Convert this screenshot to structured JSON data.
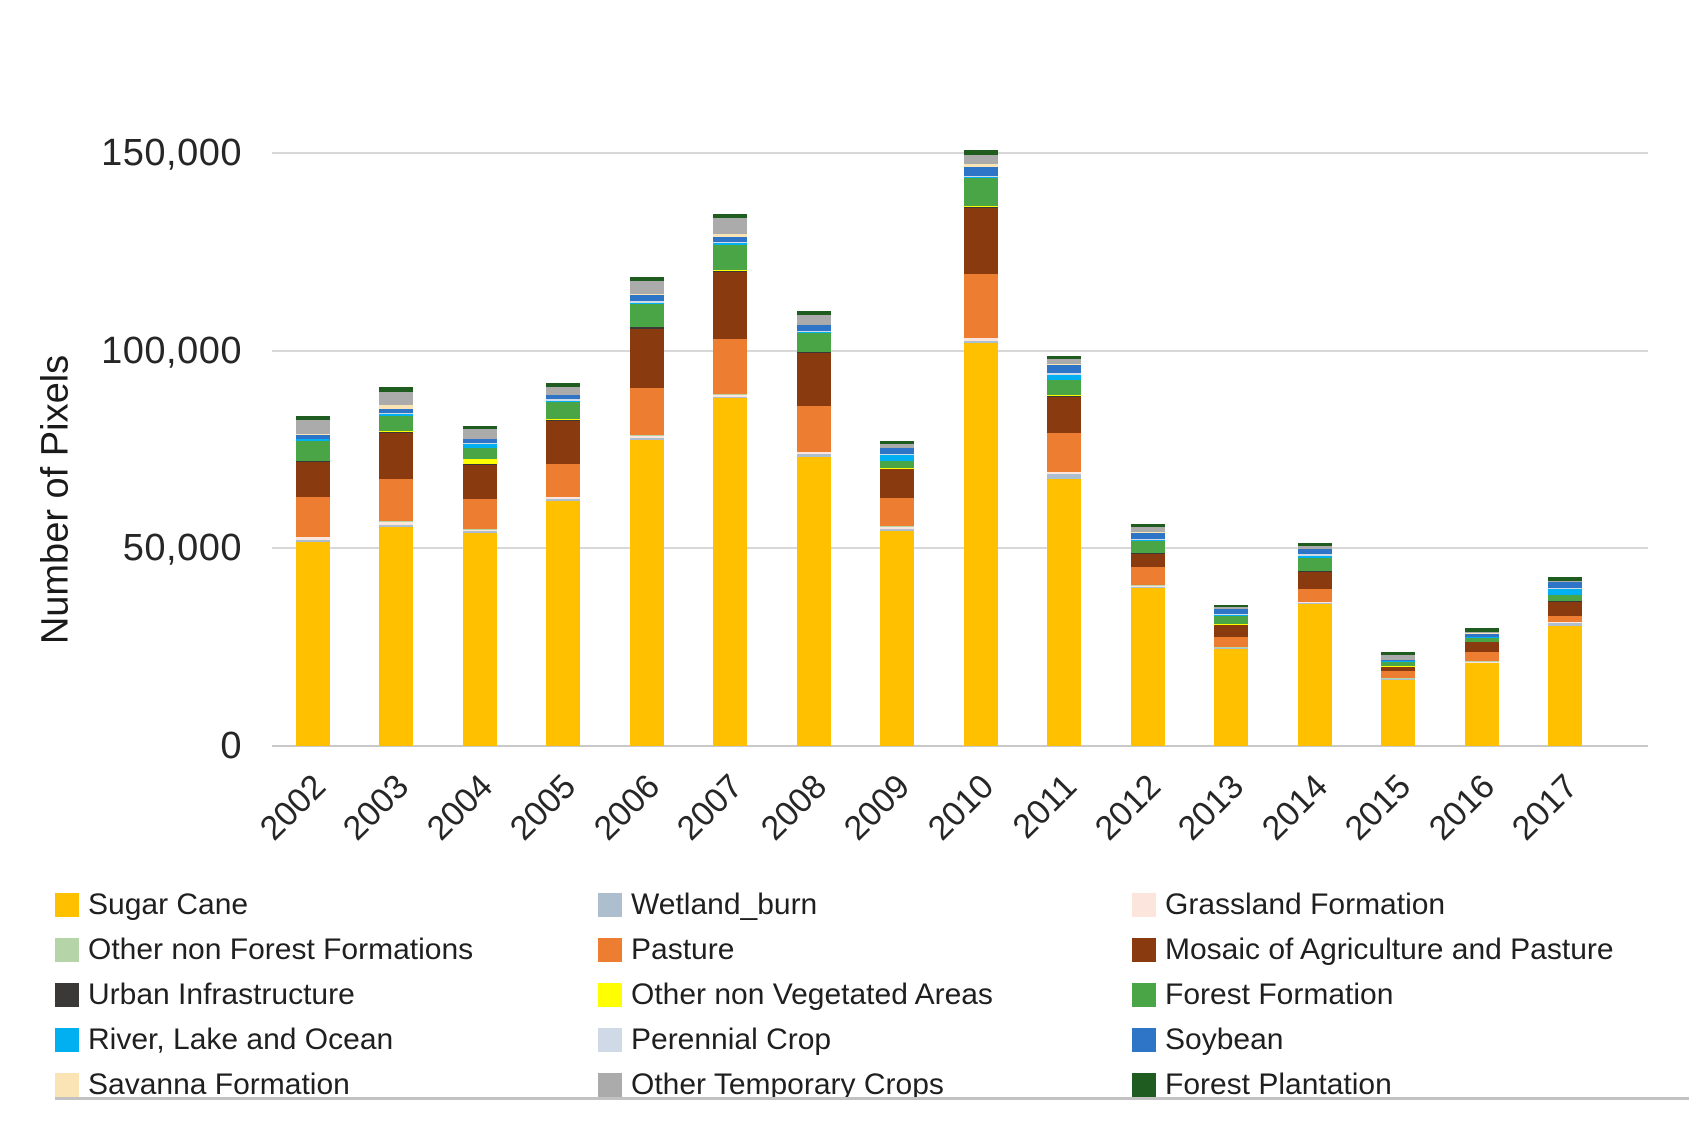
{
  "page": {
    "background": "#ffffff"
  },
  "chart": {
    "y_axis_title": "Number of Pixels",
    "y_ticks": [
      {
        "label": "150,000",
        "value": 150000
      },
      {
        "label": "100,000",
        "value": 100000
      },
      {
        "label": "50,000",
        "value": 50000
      },
      {
        "label": "0",
        "value": 0
      }
    ],
    "colors": {
      "gridline": "#d8d8d8",
      "baseline": "#c9c9c9",
      "divider": "#c2c2c2",
      "tick_text": "#262626",
      "legend_text": "#1f1f1f"
    }
  },
  "chart_data": {
    "type": "bar",
    "stacked": true,
    "title": "",
    "xlabel": "",
    "ylabel": "Number of Pixels",
    "ylim": [
      0,
      150000
    ],
    "grid": true,
    "legend_position": "bottom",
    "categories": [
      "2002",
      "2003",
      "2004",
      "2005",
      "2006",
      "2007",
      "2008",
      "2009",
      "2010",
      "2011",
      "2012",
      "2013",
      "2014",
      "2015",
      "2016",
      "2017"
    ],
    "series": [
      {
        "name": "Sugar Cane",
        "color": "#FFC000",
        "values": [
          51500,
          55500,
          54000,
          62000,
          77500,
          88000,
          73000,
          54500,
          102000,
          67500,
          40000,
          24500,
          35800,
          16800,
          21000,
          30300
        ]
      },
      {
        "name": "Wetland_burn",
        "color": "#ADBFCF",
        "values": [
          600,
          500,
          300,
          400,
          400,
          400,
          900,
          400,
          500,
          1300,
          300,
          200,
          300,
          100,
          100,
          800
        ]
      },
      {
        "name": "Grassland Formation",
        "color": "#FBE5DC",
        "values": [
          700,
          600,
          400,
          500,
          500,
          500,
          400,
          600,
          600,
          400,
          300,
          200,
          300,
          100,
          200,
          200
        ]
      },
      {
        "name": "Other non Forest Formations",
        "color": "#B5D5A8",
        "values": [
          200,
          200,
          200,
          200,
          200,
          200,
          200,
          200,
          200,
          200,
          100,
          100,
          100,
          100,
          100,
          100
        ]
      },
      {
        "name": "Pasture",
        "color": "#ED7D31",
        "values": [
          10000,
          10800,
          7600,
          8200,
          12000,
          13800,
          11400,
          7000,
          16000,
          9700,
          4600,
          2500,
          3300,
          1800,
          2500,
          1600
        ]
      },
      {
        "name": "Mosaic of Agriculture and Pasture",
        "color": "#8A3A0F",
        "values": [
          8900,
          11600,
          8600,
          11000,
          15000,
          17000,
          13500,
          7300,
          16800,
          9300,
          3300,
          3100,
          4300,
          1100,
          2300,
          3500
        ]
      },
      {
        "name": "Urban Infrastructure",
        "color": "#3B3838",
        "values": [
          200,
          200,
          300,
          200,
          300,
          300,
          200,
          200,
          300,
          200,
          200,
          100,
          200,
          100,
          100,
          100
        ]
      },
      {
        "name": "Other non Vegetated Areas",
        "color": "#FFFF00",
        "values": [
          100,
          200,
          1300,
          200,
          200,
          200,
          200,
          200,
          200,
          200,
          100,
          100,
          100,
          100,
          100,
          100
        ]
      },
      {
        "name": "Forest Formation",
        "color": "#4AA546",
        "values": [
          5000,
          3800,
          2800,
          4300,
          5600,
          6300,
          4600,
          1800,
          7000,
          3800,
          2900,
          2000,
          3300,
          1000,
          1000,
          1500
        ]
      },
      {
        "name": "River, Lake and Ocean",
        "color": "#00B0F0",
        "values": [
          400,
          500,
          800,
          400,
          500,
          500,
          400,
          1500,
          400,
          1300,
          300,
          300,
          400,
          200,
          200,
          1500
        ]
      },
      {
        "name": "Perennial Crop",
        "color": "#D0DAE6",
        "values": [
          200,
          300,
          300,
          300,
          400,
          400,
          300,
          300,
          300,
          400,
          200,
          200,
          400,
          100,
          100,
          200
        ]
      },
      {
        "name": "Soybean",
        "color": "#2E75C8",
        "values": [
          1000,
          1200,
          1000,
          1000,
          1500,
          1200,
          1300,
          1300,
          2200,
          2000,
          1700,
          1300,
          1300,
          200,
          700,
          1500
        ]
      },
      {
        "name": "Savanna Formation",
        "color": "#FAE3B4",
        "values": [
          200,
          900,
          200,
          200,
          300,
          800,
          200,
          200,
          800,
          300,
          200,
          100,
          100,
          100,
          100,
          100
        ]
      },
      {
        "name": "Other Temporary Crops",
        "color": "#ABABAB",
        "values": [
          3600,
          3300,
          2300,
          2000,
          3200,
          4000,
          2400,
          800,
          2300,
          1300,
          1300,
          400,
          700,
          1300,
          300,
          300
        ]
      },
      {
        "name": "Forest Plantation",
        "color": "#1F5C20",
        "values": [
          1000,
          1200,
          1000,
          1000,
          1100,
          1100,
          1000,
          1000,
          1100,
          800,
          800,
          600,
          900,
          800,
          1200,
          1000
        ]
      }
    ]
  },
  "legend": {
    "columns": [
      [
        "Sugar Cane",
        "Other non Forest Formations",
        "Urban Infrastructure",
        "River, Lake and Ocean",
        "Savanna Formation"
      ],
      [
        "Wetland_burn",
        "Pasture",
        "Other non Vegetated Areas",
        "Perennial Crop",
        "Other Temporary Crops"
      ],
      [
        "Grassland Formation",
        "Mosaic of Agriculture and Pasture",
        "Forest Formation",
        "Soybean",
        "Forest Plantation"
      ]
    ]
  }
}
